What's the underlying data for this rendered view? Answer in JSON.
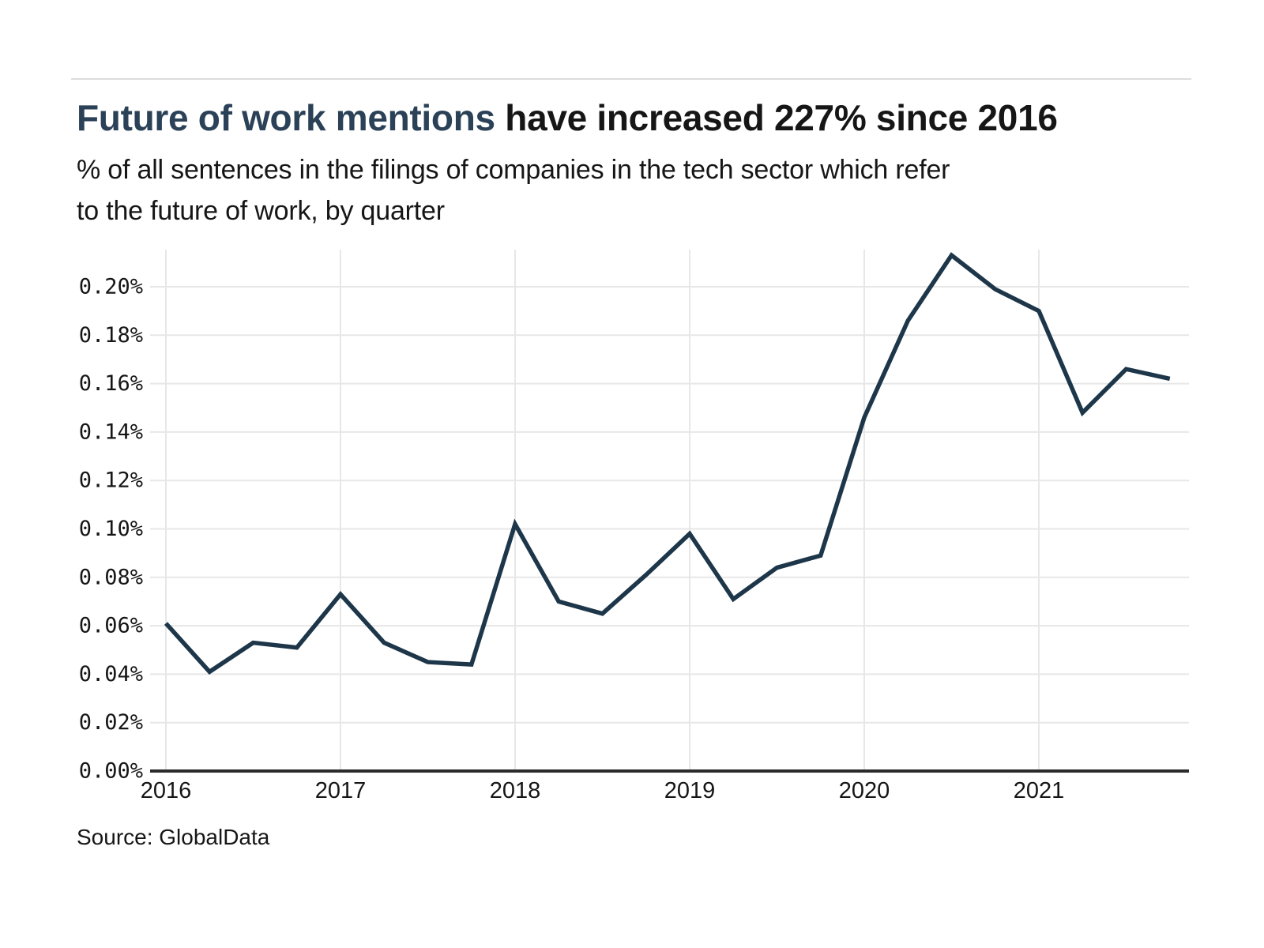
{
  "header": {
    "title_highlight": "Future of work mentions",
    "title_rest": " have increased 227% since 2016",
    "subtitle_lines": [
      "% of all sentences in the filings of companies in the tech sector which refer",
      "to the future of work, by quarter"
    ]
  },
  "source": {
    "label": "Source: GlobalData"
  },
  "colors": {
    "background": "#ffffff",
    "line": "#1d3649",
    "title_highlight": "#2b4157",
    "text": "#161616",
    "gridline": "#e7e7e7",
    "axis": "#2b2b2b",
    "divider": "#dcdcdc"
  },
  "chart_data": {
    "type": "line",
    "title": "Future of work mentions have increased 227% since 2016",
    "subtitle": "% of all sentences in the filings of companies in the tech sector which refer to the future of work, by quarter",
    "unit": "%",
    "grid": true,
    "legend": "none",
    "source": "Source: GlobalData",
    "x": [
      "2016 Q1",
      "2016 Q2",
      "2016 Q3",
      "2016 Q4",
      "2017 Q1",
      "2017 Q2",
      "2017 Q3",
      "2017 Q4",
      "2018 Q1",
      "2018 Q2",
      "2018 Q3",
      "2018 Q4",
      "2019 Q1",
      "2019 Q2",
      "2019 Q3",
      "2019 Q4",
      "2020 Q1",
      "2020 Q2",
      "2020 Q3",
      "2020 Q4",
      "2021 Q1",
      "2021 Q2",
      "2021 Q3",
      "2021 Q4"
    ],
    "values": [
      0.061,
      0.041,
      0.053,
      0.051,
      0.073,
      0.053,
      0.045,
      0.044,
      0.102,
      0.07,
      0.065,
      0.081,
      0.098,
      0.071,
      0.084,
      0.089,
      0.146,
      0.186,
      0.213,
      0.199,
      0.19,
      0.148,
      0.166,
      0.162
    ],
    "y_axis": {
      "min": 0,
      "max_tick": 0.2,
      "step": 0.02,
      "ylim": [
        0,
        0.213
      ],
      "ticks": [
        "0.20%",
        "0.18%",
        "0.16%",
        "0.14%",
        "0.12%",
        "0.10%",
        "0.08%",
        "0.06%",
        "0.04%",
        "0.02%",
        "0.00%"
      ]
    },
    "x_axis": {
      "tick_labels": [
        "2016",
        "2017",
        "2018",
        "2019",
        "2020",
        "2021"
      ],
      "tick_quarter_index": [
        0,
        4,
        8,
        12,
        16,
        20
      ]
    }
  }
}
